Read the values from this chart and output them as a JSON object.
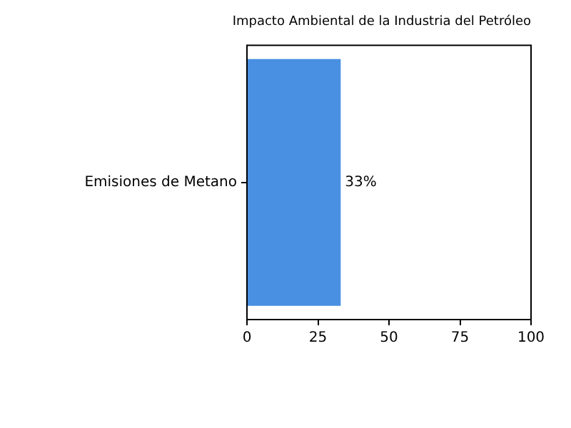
{
  "chart_data": {
    "type": "bar",
    "orientation": "horizontal",
    "title": "Impacto Ambiental de la Industria del Petróleo",
    "categories": [
      "Emisiones de Metano"
    ],
    "values": [
      33
    ],
    "value_labels": [
      "33%"
    ],
    "color": "#4a90e2",
    "xlim": [
      0,
      100
    ],
    "xticks": [
      0,
      25,
      50,
      75,
      100
    ],
    "grid": false,
    "legend": false
  }
}
